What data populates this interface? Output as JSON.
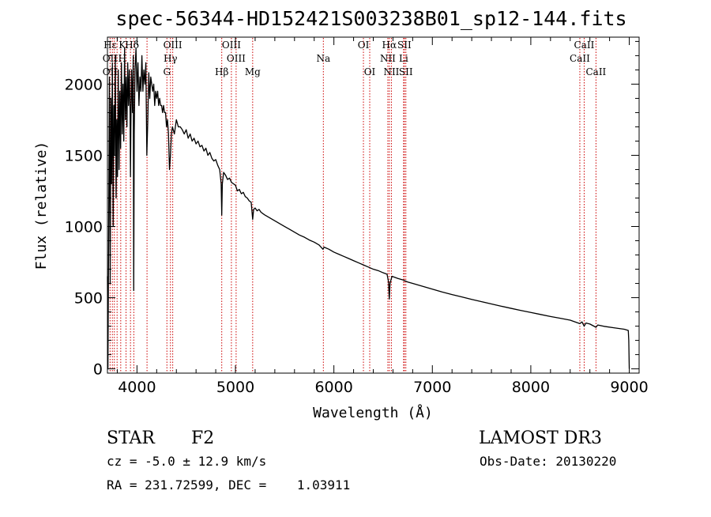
{
  "chart_data": {
    "type": "line",
    "title": "spec-56344-HD152421S003238B01_sp12-144.fits",
    "xlabel": "Wavelength (Å)",
    "ylabel": "Flux (relative)",
    "xlim": [
      3700,
      9100
    ],
    "ylim": [
      -30,
      2330
    ],
    "x_ticks": [
      4000,
      5000,
      6000,
      7000,
      8000,
      9000
    ],
    "y_ticks": [
      0,
      500,
      1000,
      1500,
      2000
    ],
    "grid": false,
    "series": [
      {
        "name": "flux",
        "color": "#000000",
        "points": [
          [
            3700,
            650
          ],
          [
            3705,
            0
          ],
          [
            3712,
            900
          ],
          [
            3720,
            2050
          ],
          [
            3728,
            600
          ],
          [
            3735,
            1900
          ],
          [
            3742,
            1300
          ],
          [
            3750,
            2150
          ],
          [
            3758,
            1000
          ],
          [
            3765,
            1850
          ],
          [
            3772,
            1500
          ],
          [
            3780,
            2200
          ],
          [
            3788,
            1200
          ],
          [
            3795,
            1750
          ],
          [
            3802,
            1350
          ],
          [
            3810,
            2100
          ],
          [
            3818,
            1400
          ],
          [
            3826,
            1950
          ],
          [
            3834,
            1550
          ],
          [
            3842,
            2150
          ],
          [
            3850,
            1650
          ],
          [
            3858,
            2000
          ],
          [
            3866,
            1600
          ],
          [
            3874,
            2250
          ],
          [
            3882,
            1750
          ],
          [
            3890,
            2050
          ],
          [
            3898,
            1700
          ],
          [
            3906,
            2150
          ],
          [
            3914,
            1850
          ],
          [
            3922,
            2100
          ],
          [
            3930,
            1800
          ],
          [
            3934,
            1350
          ],
          [
            3938,
            1700
          ],
          [
            3945,
            2100
          ],
          [
            3955,
            1800
          ],
          [
            3962,
            2200
          ],
          [
            3967,
            550
          ],
          [
            3972,
            1650
          ],
          [
            3980,
            2100
          ],
          [
            3990,
            2250
          ],
          [
            4000,
            1950
          ],
          [
            4010,
            2150
          ],
          [
            4020,
            1850
          ],
          [
            4030,
            2050
          ],
          [
            4040,
            1950
          ],
          [
            4050,
            2200
          ],
          [
            4060,
            1950
          ],
          [
            4070,
            2100
          ],
          [
            4080,
            2000
          ],
          [
            4090,
            2150
          ],
          [
            4100,
            1500
          ],
          [
            4110,
            1750
          ],
          [
            4120,
            2080
          ],
          [
            4130,
            1900
          ],
          [
            4140,
            2050
          ],
          [
            4150,
            2000
          ],
          [
            4160,
            1950
          ],
          [
            4170,
            2000
          ],
          [
            4180,
            1850
          ],
          [
            4190,
            1950
          ],
          [
            4200,
            1900
          ],
          [
            4210,
            1950
          ],
          [
            4220,
            1850
          ],
          [
            4230,
            1900
          ],
          [
            4240,
            1850
          ],
          [
            4250,
            1850
          ],
          [
            4260,
            1800
          ],
          [
            4270,
            1850
          ],
          [
            4280,
            1800
          ],
          [
            4290,
            1800
          ],
          [
            4300,
            1700
          ],
          [
            4310,
            1750
          ],
          [
            4320,
            1650
          ],
          [
            4330,
            1400
          ],
          [
            4340,
            1500
          ],
          [
            4350,
            1650
          ],
          [
            4360,
            1700
          ],
          [
            4380,
            1650
          ],
          [
            4400,
            1750
          ],
          [
            4420,
            1700
          ],
          [
            4440,
            1700
          ],
          [
            4460,
            1680
          ],
          [
            4480,
            1650
          ],
          [
            4500,
            1680
          ],
          [
            4520,
            1620
          ],
          [
            4540,
            1650
          ],
          [
            4560,
            1600
          ],
          [
            4580,
            1620
          ],
          [
            4600,
            1580
          ],
          [
            4620,
            1600
          ],
          [
            4640,
            1560
          ],
          [
            4660,
            1570
          ],
          [
            4680,
            1530
          ],
          [
            4700,
            1550
          ],
          [
            4720,
            1500
          ],
          [
            4740,
            1520
          ],
          [
            4760,
            1480
          ],
          [
            4780,
            1460
          ],
          [
            4800,
            1470
          ],
          [
            4820,
            1430
          ],
          [
            4840,
            1400
          ],
          [
            4855,
            1300
          ],
          [
            4861,
            1080
          ],
          [
            4867,
            1300
          ],
          [
            4880,
            1380
          ],
          [
            4900,
            1360
          ],
          [
            4920,
            1330
          ],
          [
            4940,
            1340
          ],
          [
            4960,
            1310
          ],
          [
            4980,
            1300
          ],
          [
            5000,
            1290
          ],
          [
            5020,
            1250
          ],
          [
            5040,
            1260
          ],
          [
            5060,
            1230
          ],
          [
            5080,
            1240
          ],
          [
            5100,
            1210
          ],
          [
            5120,
            1200
          ],
          [
            5140,
            1180
          ],
          [
            5160,
            1170
          ],
          [
            5175,
            1050
          ],
          [
            5185,
            1120
          ],
          [
            5200,
            1130
          ],
          [
            5220,
            1110
          ],
          [
            5240,
            1120
          ],
          [
            5260,
            1100
          ],
          [
            5280,
            1090
          ],
          [
            5300,
            1080
          ],
          [
            5350,
            1060
          ],
          [
            5400,
            1040
          ],
          [
            5450,
            1020
          ],
          [
            5500,
            1000
          ],
          [
            5550,
            980
          ],
          [
            5600,
            960
          ],
          [
            5650,
            940
          ],
          [
            5700,
            925
          ],
          [
            5750,
            905
          ],
          [
            5800,
            890
          ],
          [
            5850,
            870
          ],
          [
            5889,
            840
          ],
          [
            5900,
            855
          ],
          [
            5950,
            840
          ],
          [
            6000,
            820
          ],
          [
            6050,
            805
          ],
          [
            6100,
            790
          ],
          [
            6150,
            775
          ],
          [
            6200,
            760
          ],
          [
            6250,
            745
          ],
          [
            6300,
            730
          ],
          [
            6350,
            715
          ],
          [
            6400,
            700
          ],
          [
            6450,
            690
          ],
          [
            6500,
            675
          ],
          [
            6540,
            665
          ],
          [
            6555,
            610
          ],
          [
            6563,
            490
          ],
          [
            6570,
            600
          ],
          [
            6590,
            650
          ],
          [
            6650,
            635
          ],
          [
            6700,
            625
          ],
          [
            6750,
            610
          ],
          [
            6800,
            600
          ],
          [
            6900,
            580
          ],
          [
            7000,
            560
          ],
          [
            7100,
            540
          ],
          [
            7200,
            522
          ],
          [
            7300,
            505
          ],
          [
            7400,
            488
          ],
          [
            7500,
            472
          ],
          [
            7600,
            456
          ],
          [
            7700,
            440
          ],
          [
            7800,
            425
          ],
          [
            7900,
            410
          ],
          [
            8000,
            396
          ],
          [
            8100,
            382
          ],
          [
            8200,
            368
          ],
          [
            8300,
            355
          ],
          [
            8400,
            342
          ],
          [
            8498,
            318
          ],
          [
            8520,
            330
          ],
          [
            8542,
            300
          ],
          [
            8560,
            322
          ],
          [
            8600,
            315
          ],
          [
            8662,
            292
          ],
          [
            8680,
            308
          ],
          [
            8750,
            298
          ],
          [
            8850,
            288
          ],
          [
            8950,
            278
          ],
          [
            8990,
            270
          ],
          [
            8995,
            200
          ],
          [
            9000,
            0
          ]
        ]
      }
    ],
    "line_labels": [
      {
        "label": "Hε",
        "wavelength": 3728,
        "row": 1
      },
      {
        "label": "K",
        "wavelength": 3850,
        "row": 1
      },
      {
        "label": "Hδ",
        "wavelength": 3950,
        "row": 1
      },
      {
        "label": "OIII",
        "wavelength": 4363,
        "row": 1
      },
      {
        "label": "OIII",
        "wavelength": 4959,
        "row": 1
      },
      {
        "label": "OI",
        "wavelength": 6300,
        "row": 1
      },
      {
        "label": "Hα",
        "wavelength": 6563,
        "row": 1
      },
      {
        "label": "SII",
        "wavelength": 6716,
        "row": 1
      },
      {
        "label": "CaII",
        "wavelength": 8542,
        "row": 1
      },
      {
        "label": "OII",
        "wavelength": 3727,
        "row": 2
      },
      {
        "label": "H",
        "wavelength": 3850,
        "row": 2
      },
      {
        "label": "Hγ",
        "wavelength": 4340,
        "row": 2
      },
      {
        "label": "OIII",
        "wavelength": 5007,
        "row": 2
      },
      {
        "label": "Na",
        "wavelength": 5893,
        "row": 2
      },
      {
        "label": "NII",
        "wavelength": 6548,
        "row": 2
      },
      {
        "label": "Li",
        "wavelength": 6708,
        "row": 2
      },
      {
        "label": "CaII",
        "wavelength": 8498,
        "row": 2
      },
      {
        "label": "OII",
        "wavelength": 3727,
        "row": 3
      },
      {
        "label": "G",
        "wavelength": 4304,
        "row": 3
      },
      {
        "label": "Hβ",
        "wavelength": 4861,
        "row": 3
      },
      {
        "label": "Mg",
        "wavelength": 5175,
        "row": 3
      },
      {
        "label": "OI",
        "wavelength": 6364,
        "row": 3
      },
      {
        "label": "NII",
        "wavelength": 6584,
        "row": 3
      },
      {
        "label": "SII",
        "wavelength": 6731,
        "row": 3
      },
      {
        "label": "CaII",
        "wavelength": 8662,
        "row": 3
      }
    ],
    "reference_lines": [
      3727,
      3750,
      3770,
      3798,
      3835,
      3889,
      3934,
      3968,
      4102,
      4304,
      4340,
      4363,
      4861,
      4959,
      5007,
      5175,
      5893,
      6300,
      6364,
      6548,
      6563,
      6584,
      6708,
      6716,
      6731,
      8498,
      8542,
      8662
    ],
    "reference_line_color": "#cc0000"
  },
  "info": {
    "object_class": "STAR",
    "subclass": "F2",
    "survey": "LAMOST DR3",
    "redshift": "cz = -5.0 ± 12.9 km/s",
    "obs_date": "Obs-Date: 20130220",
    "coords": "RA = 231.72599, DEC =    1.03911"
  }
}
